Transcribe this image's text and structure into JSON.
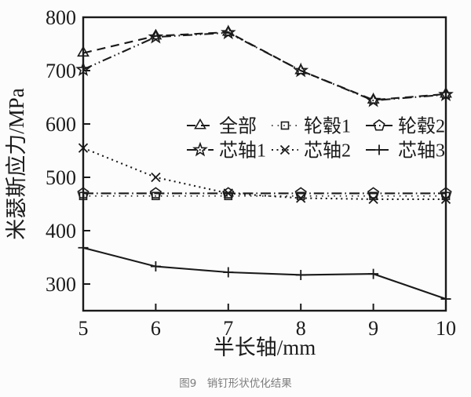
{
  "caption": "图9　销钉形状优化结果",
  "colors": {
    "line": "#1a1a1a",
    "caption": "#7d7d7d",
    "background": "#fcfcfc"
  },
  "chart_data": {
    "type": "line",
    "title": "",
    "xlabel": "半长轴/mm",
    "ylabel": "米瑟斯应力/MPa",
    "x": [
      5,
      6,
      7,
      8,
      9,
      10
    ],
    "xlim": [
      5,
      10
    ],
    "ylim": [
      250,
      800
    ],
    "xticks": [
      5,
      6,
      7,
      8,
      9,
      10
    ],
    "yticks": [
      300,
      400,
      500,
      600,
      700,
      800
    ],
    "grid": false,
    "legend_position": "inside middle-right, 2 rows x 3 columns, no frame",
    "legend_rows": [
      [
        "全部",
        "轮毂1",
        "轮毂2"
      ],
      [
        "芯轴1",
        "芯轴2",
        "芯轴3"
      ]
    ],
    "series": [
      {
        "id": "all",
        "name": "全部",
        "marker": "triangle",
        "linestyle": "dashed",
        "values": [
          733,
          765,
          772,
          700,
          645,
          656
        ]
      },
      {
        "id": "hub1",
        "name": "轮毂1",
        "marker": "square",
        "linestyle": "dotted",
        "values": [
          465,
          465,
          465,
          465,
          465,
          465
        ]
      },
      {
        "id": "hub2",
        "name": "轮毂2",
        "marker": "pentagon",
        "linestyle": "dashdot",
        "values": [
          470,
          470,
          470,
          470,
          470,
          470
        ]
      },
      {
        "id": "mandrel1",
        "name": "芯轴1",
        "marker": "star",
        "linestyle": "dashdotdot",
        "values": [
          702,
          763,
          771,
          700,
          644,
          655
        ]
      },
      {
        "id": "mandrel2",
        "name": "芯轴2",
        "marker": "x",
        "linestyle": "densely-dotted",
        "values": [
          555,
          500,
          470,
          461,
          459,
          459
        ]
      },
      {
        "id": "mandrel3",
        "name": "芯轴3",
        "marker": "plus",
        "linestyle": "solid",
        "values": [
          368,
          333,
          322,
          317,
          319,
          272
        ]
      }
    ]
  }
}
